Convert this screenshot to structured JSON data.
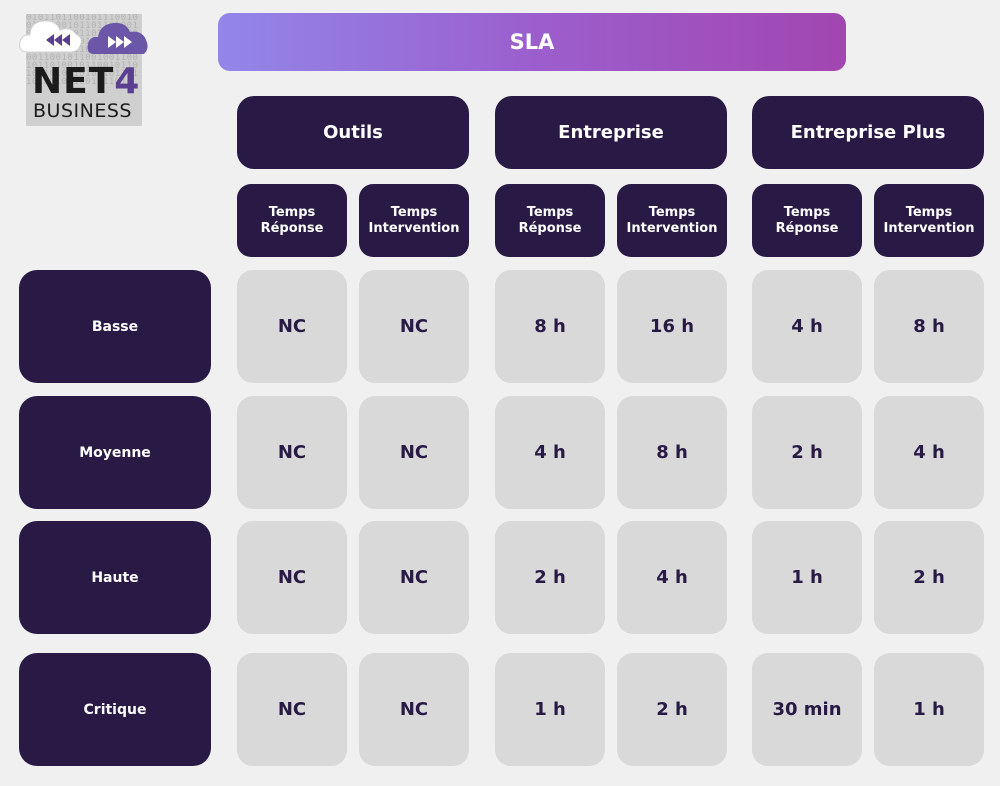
{
  "logo": {
    "text_main": "NET",
    "text_accent": "4",
    "text_sub": "BUSINESS",
    "bits": "01011011001011100100101100101101101001011010010110110100011001011001001011010101001011000101101001100101100100110010110100101100101101011010110100101101101001011001011010",
    "colors": {
      "accent": "#5a3e8f",
      "dark": "#1b1b1b"
    }
  },
  "header": {
    "title": "SLA"
  },
  "chart_data": {
    "type": "table",
    "title": "SLA",
    "groups": [
      {
        "label": "Outils",
        "columns": [
          "Temps Réponse",
          "Temps Intervention"
        ]
      },
      {
        "label": "Entreprise",
        "columns": [
          "Temps Réponse",
          "Temps Intervention"
        ]
      },
      {
        "label": "Entreprise Plus",
        "columns": [
          "Temps Réponse",
          "Temps Intervention"
        ]
      }
    ],
    "rows": [
      {
        "label": "Basse",
        "values": [
          "NC",
          "NC",
          "8 h",
          "16 h",
          "4 h",
          "8 h"
        ]
      },
      {
        "label": "Moyenne",
        "values": [
          "NC",
          "NC",
          "4 h",
          "8 h",
          "2 h",
          "4 h"
        ]
      },
      {
        "label": "Haute",
        "values": [
          "NC",
          "NC",
          "2 h",
          "4 h",
          "1 h",
          "2 h"
        ]
      },
      {
        "label": "Critique",
        "values": [
          "NC",
          "NC",
          "1 h",
          "2 h",
          "30 min",
          "1 h"
        ]
      }
    ],
    "colors": {
      "header_bg": "#281a45",
      "cell_bg": "#d9d9d9",
      "title_gradient_start": "#9286ea",
      "title_gradient_end": "#a246b1",
      "background": "#f0f0f0"
    }
  }
}
